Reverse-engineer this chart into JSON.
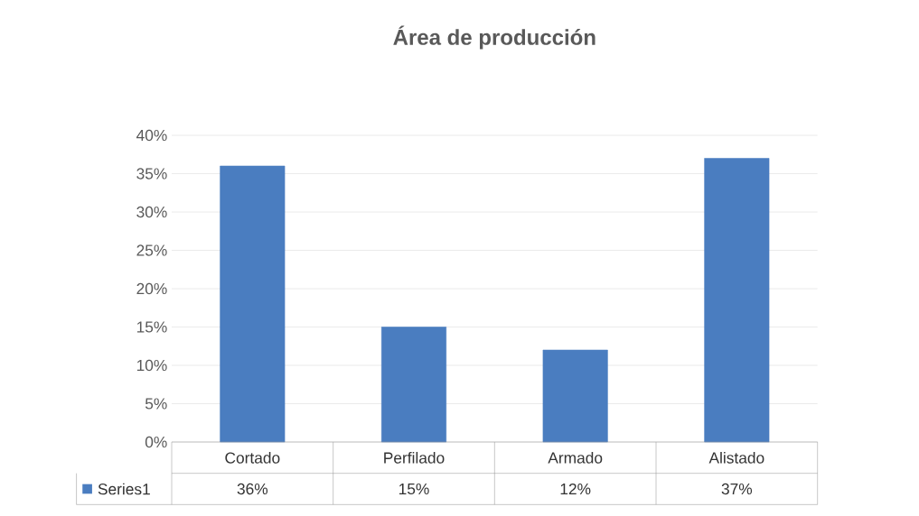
{
  "chart_data": {
    "type": "bar",
    "title": "Área de producción",
    "categories": [
      "Cortado",
      "Perfilado",
      "Armado",
      "Alistado"
    ],
    "series": [
      {
        "name": "Series1",
        "color": "#4a7dc0",
        "values": [
          36,
          15,
          12,
          37
        ],
        "value_labels": [
          "36%",
          "15%",
          "12%",
          "37%"
        ]
      }
    ],
    "ylim": [
      0,
      40
    ],
    "yticks": [
      {
        "value": 0,
        "label": "0%"
      },
      {
        "value": 5,
        "label": "5%"
      },
      {
        "value": 10,
        "label": "10%"
      },
      {
        "value": 15,
        "label": "15%"
      },
      {
        "value": 20,
        "label": "20%"
      },
      {
        "value": 25,
        "label": "25%"
      },
      {
        "value": 30,
        "label": "30%"
      },
      {
        "value": 35,
        "label": "35%"
      },
      {
        "value": 40,
        "label": "40%"
      }
    ],
    "grid": "y",
    "legend": "bottom"
  }
}
